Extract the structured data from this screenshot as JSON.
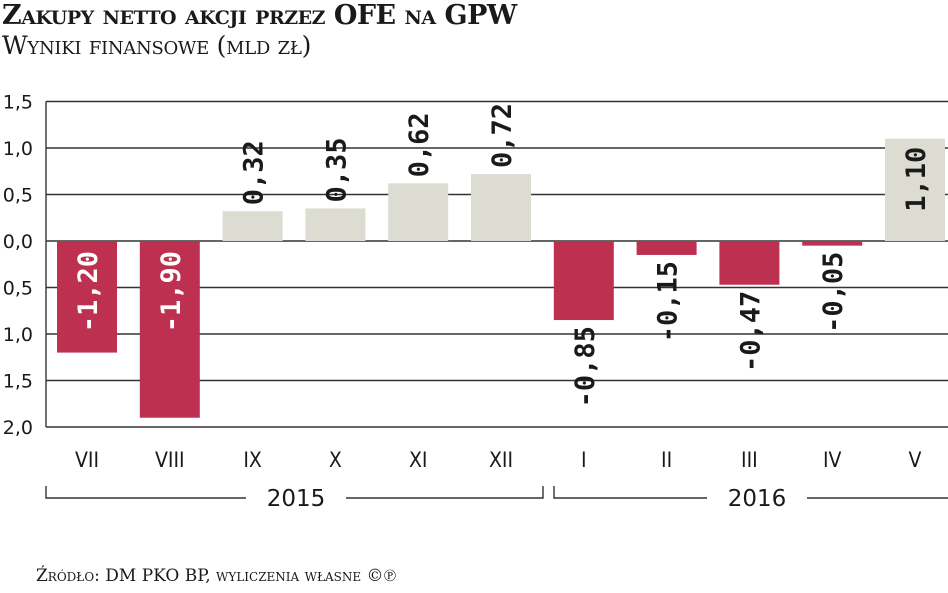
{
  "header": {
    "title": "Zakupy netto  akcji przez OFE na GPW",
    "subtitle": "Wyniki finansowe (mld zł)"
  },
  "footer": {
    "source": "Źródło: DM PKO BP, wyliczenia własne ©℗"
  },
  "colors": {
    "negative": "#BE3050",
    "positive": "#DCDCD2",
    "grid": "#333333"
  },
  "chart_data": {
    "type": "bar",
    "title": "Zakupy netto akcji przez OFE na GPW",
    "subtitle": "Wyniki finansowe (mld zł)",
    "xlabel": "",
    "ylabel": "mld zł",
    "ylim": [
      -2.0,
      1.5
    ],
    "yticks": [
      "1,5",
      "1,0",
      "0,5",
      "0,0",
      "0,5",
      "1,0",
      "1,5",
      "2,0"
    ],
    "ytick_values": [
      1.5,
      1.0,
      0.5,
      0.0,
      -0.5,
      -1.0,
      -1.5,
      -2.0
    ],
    "grid": true,
    "categories": [
      "VII",
      "VIII",
      "IX",
      "X",
      "XI",
      "XII",
      "I",
      "II",
      "III",
      "IV",
      "V"
    ],
    "values": [
      -1.2,
      -1.9,
      0.32,
      0.35,
      0.62,
      0.72,
      -0.85,
      -0.15,
      -0.47,
      -0.05,
      1.1
    ],
    "value_labels": [
      "-1,20",
      "-1,90",
      "0,32",
      "0,35",
      "0,62",
      "0,72",
      "-0,85",
      "-0,15",
      "-0,47",
      "-0,05",
      "1,10"
    ],
    "groups": [
      {
        "label": "2015",
        "categories": [
          "VII",
          "VIII",
          "IX",
          "X",
          "XI",
          "XII"
        ]
      },
      {
        "label": "2016",
        "categories": [
          "I",
          "II",
          "III",
          "IV",
          "V"
        ]
      }
    ],
    "source": "Źródło: DM PKO BP, wyliczenia własne"
  }
}
